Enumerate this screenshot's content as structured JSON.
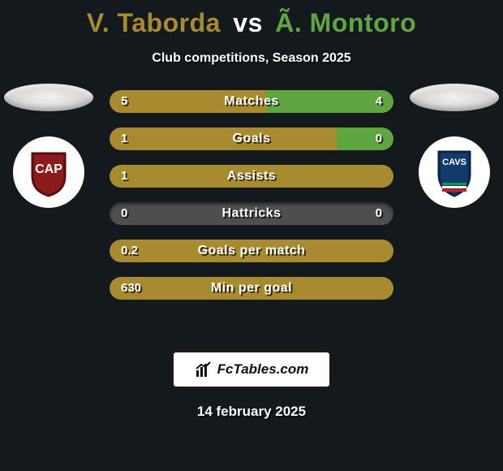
{
  "title": {
    "player1": "V. Taborda",
    "vs": "vs",
    "player2": "Ã. Montoro"
  },
  "subtitle": "Club competitions, Season 2025",
  "colors": {
    "player1": "#a88a2f",
    "player2": "#5fa540",
    "bar_track": "#4e4e4e",
    "background": "#13191c"
  },
  "club_badges": {
    "left": {
      "name": "CAP",
      "style": {
        "base": "#ffffff",
        "shield_fill": "#8c1b1b",
        "shield_border": "#5a0f0f",
        "text_color": "#ffffff"
      }
    },
    "right": {
      "name": "CAVS",
      "style": {
        "base": "#ffffff",
        "shield_fill": "#123a6b",
        "shield_border": "#0a2342",
        "stripe_a": "#0a9b3a",
        "stripe_b": "#e01919",
        "text_color": "#ffffff"
      }
    }
  },
  "stats": [
    {
      "label": "Matches",
      "left_val": "5",
      "right_val": "4",
      "left_pct": 55,
      "right_pct": 45
    },
    {
      "label": "Goals",
      "left_val": "1",
      "right_val": "0",
      "left_pct": 80,
      "right_pct": 20
    },
    {
      "label": "Assists",
      "left_val": "1",
      "right_val": "",
      "left_pct": 100,
      "right_pct": 0
    },
    {
      "label": "Hattricks",
      "left_val": "0",
      "right_val": "0",
      "left_pct": 0,
      "right_pct": 0
    },
    {
      "label": "Goals per match",
      "left_val": "0.2",
      "right_val": "",
      "left_pct": 100,
      "right_pct": 0
    },
    {
      "label": "Min per goal",
      "left_val": "630",
      "right_val": "",
      "left_pct": 100,
      "right_pct": 0
    }
  ],
  "footer": {
    "brand": "FcTables.com"
  },
  "date": "14 february 2025"
}
